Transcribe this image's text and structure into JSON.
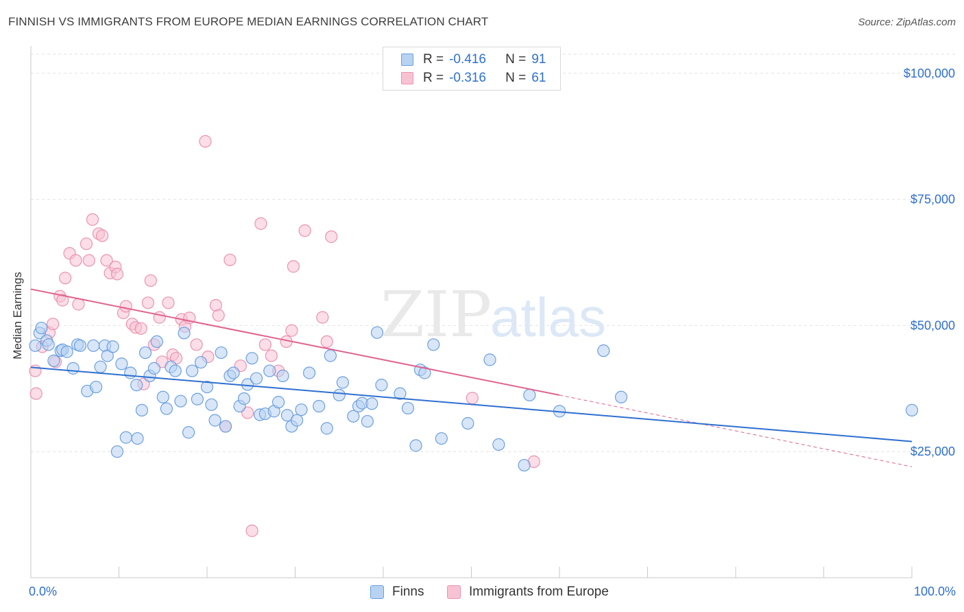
{
  "title": "FINNISH VS IMMIGRANTS FROM EUROPE MEDIAN EARNINGS CORRELATION CHART",
  "source": "Source: ZipAtlas.com",
  "watermark": {
    "zip": "ZIP",
    "atlas": "atlas"
  },
  "colors": {
    "finns_fill": "#b8d2f2",
    "finns_stroke": "#6c9fe0",
    "finns_line": "#2e6fd0",
    "imm_fill": "#f7c3d3",
    "imm_stroke": "#ec92b0",
    "imm_line": "#e0628f",
    "value_text": "#2e6fd0",
    "grid": "#e2e2e2"
  },
  "legend": {
    "rows": [
      {
        "r_label": "R =",
        "r_value": "-0.416",
        "n_label": "N =",
        "n_value": "91"
      },
      {
        "r_label": "R =",
        "r_value": "-0.316",
        "n_label": "N =",
        "n_value": "61"
      }
    ]
  },
  "bottom_legend": {
    "finns": "Finns",
    "immigrants": "Immigrants from Europe"
  },
  "chart_data": {
    "type": "scatter",
    "title": "FINNISH VS IMMIGRANTS FROM EUROPE MEDIAN EARNINGS CORRELATION CHART",
    "xlabel": "",
    "ylabel": "Median Earnings",
    "xlim": [
      0,
      100
    ],
    "ylim": [
      0,
      105000
    ],
    "x_tick_labels": [
      "0.0%",
      "100.0%"
    ],
    "y_ticks": [
      25000,
      50000,
      75000,
      100000
    ],
    "y_tick_labels": [
      "$25,000",
      "$50,000",
      "$75,000",
      "$100,000"
    ],
    "grid": true,
    "legend_position": "top-center",
    "series": [
      {
        "name": "Finns",
        "trend": {
          "x": [
            0,
            100
          ],
          "y": [
            41700,
            27000
          ]
        },
        "points": [
          [
            0.5,
            46000
          ],
          [
            1.0,
            48500
          ],
          [
            1.2,
            49500
          ],
          [
            1.8,
            47000
          ],
          [
            2.0,
            46200
          ],
          [
            2.6,
            43000
          ],
          [
            3.4,
            45000
          ],
          [
            3.6,
            45200
          ],
          [
            4.1,
            44800
          ],
          [
            4.8,
            41500
          ],
          [
            5.3,
            46200
          ],
          [
            5.6,
            46000
          ],
          [
            6.4,
            37000
          ],
          [
            7.1,
            46000
          ],
          [
            7.4,
            37800
          ],
          [
            7.9,
            41800
          ],
          [
            8.4,
            46000
          ],
          [
            8.7,
            44000
          ],
          [
            9.3,
            45800
          ],
          [
            9.8,
            25000
          ],
          [
            10.3,
            42400
          ],
          [
            10.8,
            27800
          ],
          [
            11.3,
            40600
          ],
          [
            12.0,
            38200
          ],
          [
            12.1,
            27600
          ],
          [
            12.6,
            33200
          ],
          [
            13.0,
            44600
          ],
          [
            13.5,
            40000
          ],
          [
            14.0,
            41500
          ],
          [
            14.3,
            46800
          ],
          [
            15.0,
            35800
          ],
          [
            15.4,
            33500
          ],
          [
            15.9,
            41800
          ],
          [
            16.4,
            41000
          ],
          [
            17.0,
            35000
          ],
          [
            17.4,
            48500
          ],
          [
            17.9,
            28800
          ],
          [
            18.3,
            41000
          ],
          [
            18.9,
            35400
          ],
          [
            19.3,
            42700
          ],
          [
            20.0,
            37800
          ],
          [
            20.5,
            34300
          ],
          [
            20.9,
            31200
          ],
          [
            21.6,
            44600
          ],
          [
            22.1,
            30000
          ],
          [
            22.6,
            40000
          ],
          [
            23.0,
            40600
          ],
          [
            23.7,
            34000
          ],
          [
            24.2,
            35500
          ],
          [
            24.6,
            38300
          ],
          [
            25.1,
            43500
          ],
          [
            25.6,
            39500
          ],
          [
            26.0,
            32300
          ],
          [
            26.6,
            32500
          ],
          [
            27.1,
            41000
          ],
          [
            27.6,
            33000
          ],
          [
            28.1,
            34800
          ],
          [
            28.6,
            40000
          ],
          [
            29.1,
            32200
          ],
          [
            29.6,
            30000
          ],
          [
            30.2,
            31200
          ],
          [
            30.7,
            33300
          ],
          [
            31.6,
            40600
          ],
          [
            32.7,
            34000
          ],
          [
            33.6,
            29600
          ],
          [
            34.0,
            44000
          ],
          [
            35.0,
            36200
          ],
          [
            35.4,
            38700
          ],
          [
            36.6,
            32000
          ],
          [
            37.2,
            34000
          ],
          [
            37.6,
            34600
          ],
          [
            38.2,
            31000
          ],
          [
            38.7,
            34500
          ],
          [
            39.3,
            48600
          ],
          [
            39.8,
            38200
          ],
          [
            41.9,
            36500
          ],
          [
            42.8,
            33600
          ],
          [
            43.7,
            26200
          ],
          [
            44.2,
            41200
          ],
          [
            44.7,
            40600
          ],
          [
            45.7,
            46200
          ],
          [
            46.6,
            27600
          ],
          [
            49.6,
            30600
          ],
          [
            52.1,
            43200
          ],
          [
            53.1,
            26400
          ],
          [
            56.0,
            22300
          ],
          [
            56.6,
            36200
          ],
          [
            60.0,
            33000
          ],
          [
            65.0,
            45000
          ],
          [
            67.0,
            35800
          ],
          [
            100.0,
            33200
          ]
        ]
      },
      {
        "name": "Immigrants from Europe",
        "trend": {
          "x": [
            0,
            60
          ],
          "y": [
            57200,
            36200
          ],
          "dashed_to": {
            "x": 100,
            "y": 22000
          }
        },
        "points": [
          [
            0.5,
            41000
          ],
          [
            0.6,
            36500
          ],
          [
            1.3,
            45800
          ],
          [
            2.1,
            48600
          ],
          [
            2.5,
            50300
          ],
          [
            2.8,
            42800
          ],
          [
            3.3,
            55800
          ],
          [
            3.6,
            55000
          ],
          [
            3.9,
            59400
          ],
          [
            4.4,
            64300
          ],
          [
            5.1,
            62900
          ],
          [
            5.4,
            54200
          ],
          [
            6.3,
            66200
          ],
          [
            6.6,
            62900
          ],
          [
            7.0,
            71000
          ],
          [
            7.7,
            68200
          ],
          [
            8.1,
            67800
          ],
          [
            8.6,
            62900
          ],
          [
            9.0,
            60400
          ],
          [
            9.6,
            61600
          ],
          [
            9.8,
            60200
          ],
          [
            10.5,
            52500
          ],
          [
            10.8,
            53800
          ],
          [
            11.5,
            50300
          ],
          [
            11.9,
            49600
          ],
          [
            12.5,
            49400
          ],
          [
            12.8,
            38400
          ],
          [
            13.3,
            54500
          ],
          [
            13.6,
            58900
          ],
          [
            14.0,
            46200
          ],
          [
            14.6,
            51600
          ],
          [
            14.9,
            42800
          ],
          [
            15.6,
            54500
          ],
          [
            16.1,
            44200
          ],
          [
            16.5,
            43500
          ],
          [
            17.1,
            51200
          ],
          [
            17.5,
            49800
          ],
          [
            18.0,
            51500
          ],
          [
            18.8,
            46200
          ],
          [
            19.8,
            86500
          ],
          [
            20.1,
            43800
          ],
          [
            21.0,
            54000
          ],
          [
            21.3,
            52000
          ],
          [
            22.1,
            30000
          ],
          [
            22.6,
            63000
          ],
          [
            23.8,
            42000
          ],
          [
            24.6,
            32700
          ],
          [
            25.1,
            9300
          ],
          [
            26.1,
            70200
          ],
          [
            26.6,
            46200
          ],
          [
            27.3,
            44000
          ],
          [
            28.1,
            41000
          ],
          [
            29.0,
            46800
          ],
          [
            29.6,
            49000
          ],
          [
            29.8,
            61700
          ],
          [
            31.1,
            68800
          ],
          [
            33.1,
            51600
          ],
          [
            33.6,
            46800
          ],
          [
            34.1,
            67600
          ],
          [
            50.1,
            35600
          ],
          [
            57.1,
            23000
          ]
        ]
      }
    ]
  }
}
